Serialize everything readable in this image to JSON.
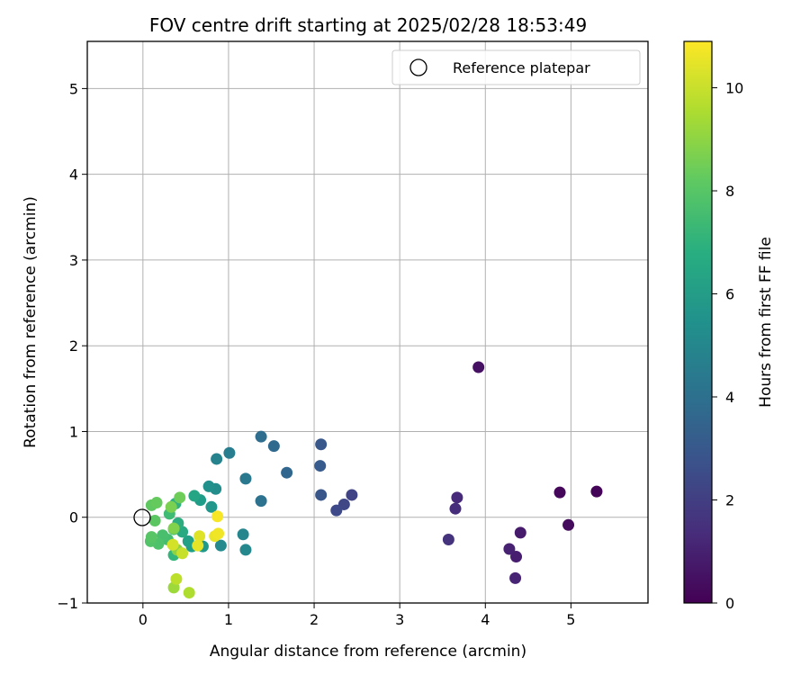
{
  "chart_data": {
    "type": "scatter",
    "title": "FOV centre drift starting at 2025/02/28 18:53:49",
    "xlabel": "Angular distance from reference (arcmin)",
    "ylabel": "Rotation from reference (arcmin)",
    "xlim": [
      -0.65,
      5.9
    ],
    "ylim": [
      -1.0,
      5.55
    ],
    "xticks": [
      "0",
      "1",
      "2",
      "3",
      "4",
      "5"
    ],
    "yticks": [
      "−1",
      "0",
      "1",
      "2",
      "3",
      "4",
      "5"
    ],
    "grid": true,
    "legend": {
      "position": "top-right",
      "label": "Reference platepar"
    },
    "reference_point": {
      "x": 0,
      "y": 0
    },
    "colorbar": {
      "label": "Hours from first FF file",
      "range": [
        0,
        10.9
      ],
      "ticks": [
        "0",
        "2",
        "4",
        "6",
        "8",
        "10"
      ],
      "colormap": "viridis"
    },
    "points": [
      {
        "x": 5.3,
        "y": 0.3,
        "h": 0.1
      },
      {
        "x": 4.87,
        "y": 0.29,
        "h": 0.2
      },
      {
        "x": 4.97,
        "y": -0.09,
        "h": 0.3
      },
      {
        "x": 3.92,
        "y": 1.75,
        "h": 0.5
      },
      {
        "x": 4.41,
        "y": -0.18,
        "h": 0.8
      },
      {
        "x": 4.36,
        "y": -0.46,
        "h": 0.9
      },
      {
        "x": 4.28,
        "y": -0.37,
        "h": 1.0
      },
      {
        "x": 4.35,
        "y": -0.71,
        "h": 1.1
      },
      {
        "x": 3.67,
        "y": 0.23,
        "h": 1.3
      },
      {
        "x": 3.65,
        "y": 0.1,
        "h": 1.4
      },
      {
        "x": 3.57,
        "y": -0.26,
        "h": 1.6
      },
      {
        "x": 2.44,
        "y": 0.26,
        "h": 2.2
      },
      {
        "x": 2.35,
        "y": 0.15,
        "h": 2.3
      },
      {
        "x": 2.26,
        "y": 0.08,
        "h": 2.4
      },
      {
        "x": 2.08,
        "y": 0.26,
        "h": 2.9
      },
      {
        "x": 2.08,
        "y": 0.85,
        "h": 3.0
      },
      {
        "x": 2.07,
        "y": 0.6,
        "h": 3.1
      },
      {
        "x": 1.68,
        "y": 0.52,
        "h": 3.6
      },
      {
        "x": 1.53,
        "y": 0.83,
        "h": 3.7
      },
      {
        "x": 1.38,
        "y": 0.94,
        "h": 3.9
      },
      {
        "x": 1.38,
        "y": 0.19,
        "h": 4.1
      },
      {
        "x": 1.2,
        "y": 0.45,
        "h": 4.4
      },
      {
        "x": 1.01,
        "y": 0.75,
        "h": 4.6
      },
      {
        "x": 0.86,
        "y": 0.68,
        "h": 4.9
      },
      {
        "x": 1.17,
        "y": -0.2,
        "h": 5.0
      },
      {
        "x": 1.2,
        "y": -0.38,
        "h": 5.1
      },
      {
        "x": 0.91,
        "y": -0.33,
        "h": 5.2
      },
      {
        "x": 0.85,
        "y": 0.33,
        "h": 5.3
      },
      {
        "x": 0.77,
        "y": 0.36,
        "h": 5.5
      },
      {
        "x": 0.8,
        "y": 0.12,
        "h": 5.7
      },
      {
        "x": 0.7,
        "y": -0.34,
        "h": 5.8
      },
      {
        "x": 0.67,
        "y": 0.2,
        "h": 6.0
      },
      {
        "x": 0.57,
        "y": -0.34,
        "h": 6.1
      },
      {
        "x": 0.53,
        "y": -0.28,
        "h": 6.2
      },
      {
        "x": 0.6,
        "y": 0.25,
        "h": 6.4
      },
      {
        "x": 0.46,
        "y": -0.17,
        "h": 6.6
      },
      {
        "x": 0.41,
        "y": -0.07,
        "h": 6.8
      },
      {
        "x": 0.38,
        "y": 0.16,
        "h": 7.0
      },
      {
        "x": 0.36,
        "y": -0.44,
        "h": 7.2
      },
      {
        "x": 0.36,
        "y": -0.14,
        "h": 7.4
      },
      {
        "x": 0.31,
        "y": 0.04,
        "h": 7.5
      },
      {
        "x": 0.29,
        "y": -0.26,
        "h": 7.6
      },
      {
        "x": 0.23,
        "y": -0.21,
        "h": 7.7
      },
      {
        "x": 0.18,
        "y": -0.31,
        "h": 7.8
      },
      {
        "x": 0.09,
        "y": -0.28,
        "h": 7.9
      },
      {
        "x": 0.1,
        "y": -0.23,
        "h": 8.0
      },
      {
        "x": 0.14,
        "y": -0.04,
        "h": 8.1
      },
      {
        "x": 0.1,
        "y": 0.14,
        "h": 8.2
      },
      {
        "x": 0.16,
        "y": 0.17,
        "h": 8.3
      },
      {
        "x": 0.43,
        "y": 0.23,
        "h": 8.5
      },
      {
        "x": 0.33,
        "y": 0.12,
        "h": 8.7
      },
      {
        "x": 0.36,
        "y": -0.13,
        "h": 8.8
      },
      {
        "x": 0.4,
        "y": -0.38,
        "h": 9.0
      },
      {
        "x": 0.36,
        "y": -0.82,
        "h": 9.3
      },
      {
        "x": 0.54,
        "y": -0.88,
        "h": 9.6
      },
      {
        "x": 0.39,
        "y": -0.72,
        "h": 9.8
      },
      {
        "x": 0.46,
        "y": -0.42,
        "h": 10.0
      },
      {
        "x": 0.35,
        "y": -0.32,
        "h": 10.2
      },
      {
        "x": 0.66,
        "y": -0.22,
        "h": 10.4
      },
      {
        "x": 0.64,
        "y": -0.33,
        "h": 10.5
      },
      {
        "x": 0.84,
        "y": -0.22,
        "h": 10.6
      },
      {
        "x": 0.88,
        "y": -0.19,
        "h": 10.7
      },
      {
        "x": 0.87,
        "y": 0.01,
        "h": 10.8
      }
    ]
  }
}
